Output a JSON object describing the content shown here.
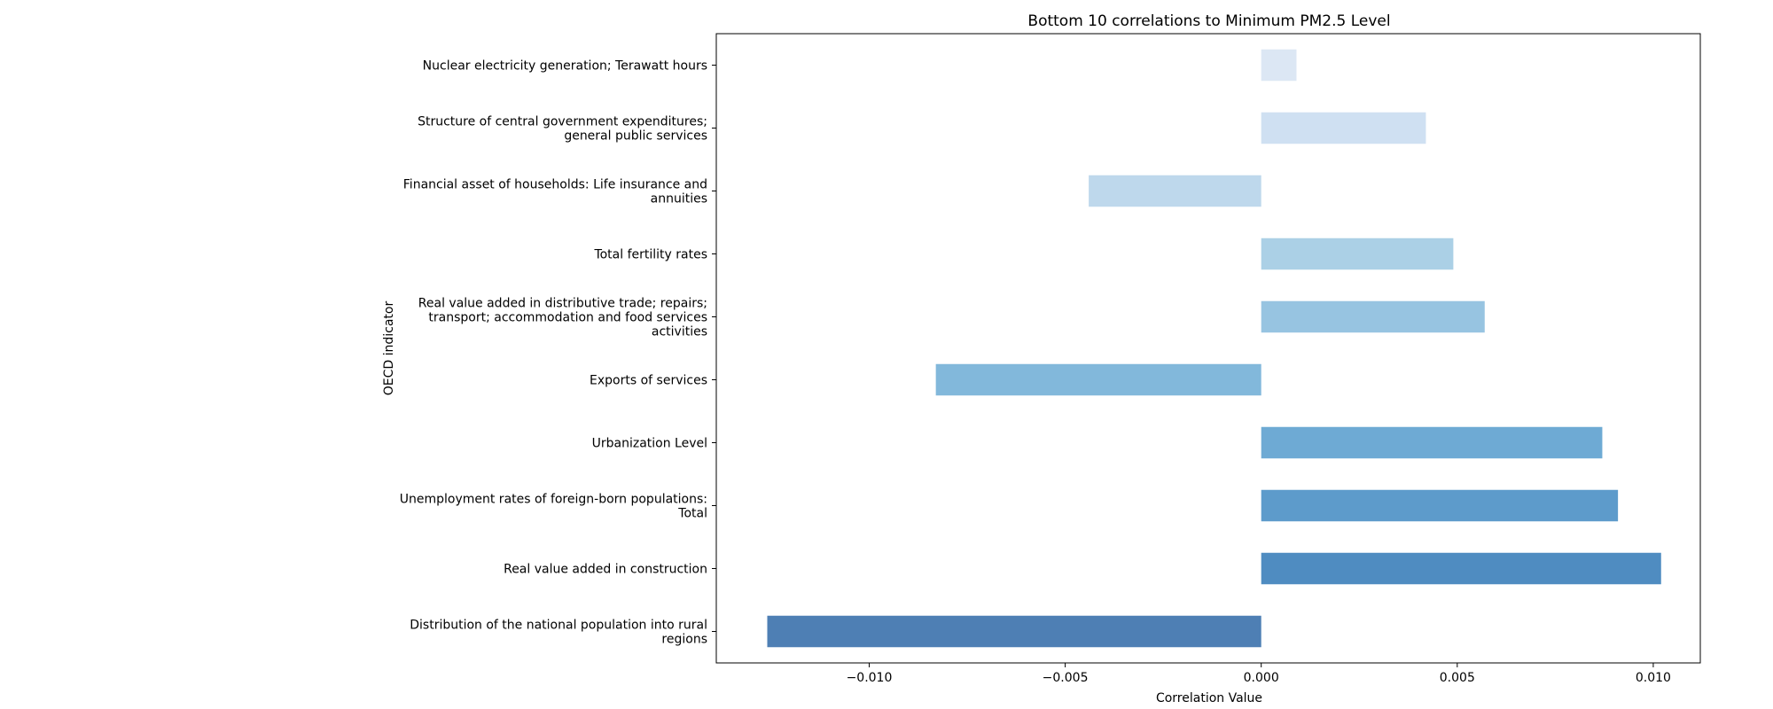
{
  "chart_data": {
    "type": "bar",
    "orientation": "horizontal",
    "title": "Bottom 10 correlations to Minimum PM2.5 Level",
    "xlabel": "Correlation Value",
    "ylabel": "OECD indicator",
    "xlim": [
      -0.0139,
      0.0112
    ],
    "xticks": [
      -0.01,
      -0.005,
      0.0,
      0.005,
      0.01
    ],
    "xtick_labels": [
      "−0.010",
      "−0.005",
      "0.000",
      "0.005",
      "0.010"
    ],
    "grid": false,
    "categories": [
      "Nuclear electricity generation; Terawatt hours",
      "Structure of central government expenditures; general public services",
      "Financial asset of households: Life insurance and annuities",
      "Total fertility rates",
      "Real value added in distributive trade; repairs; transport; accommodation and food services activities",
      "Exports of services",
      "Urbanization Level",
      "Unemployment rates of foreign-born populations: Total",
      "Real value added in construction",
      "Distribution of the national population into rural regions"
    ],
    "category_label_lines": [
      [
        "Nuclear electricity generation; Terawatt hours"
      ],
      [
        "Structure of central government expenditures;",
        "general public services"
      ],
      [
        "Financial asset of households: Life insurance and",
        "annuities"
      ],
      [
        "Total fertility rates"
      ],
      [
        "Real value added in distributive trade; repairs;",
        "transport; accommodation and food services",
        "activities"
      ],
      [
        "Exports of services"
      ],
      [
        "Urbanization Level"
      ],
      [
        "Unemployment rates of foreign-born populations:",
        "Total"
      ],
      [
        "Real value added in construction"
      ],
      [
        "Distribution of the national population into rural",
        "regions"
      ]
    ],
    "values": [
      0.0009,
      0.0042,
      -0.0044,
      0.0049,
      0.0057,
      -0.0083,
      0.0087,
      0.0091,
      0.0102,
      -0.0126
    ],
    "colors": [
      "#dce7f4",
      "#cfe0f2",
      "#bed8ec",
      "#abd0e6",
      "#97c4e1",
      "#82b8db",
      "#6eaad4",
      "#5d9bcb",
      "#4f8cc1",
      "#4e7fb4"
    ]
  }
}
